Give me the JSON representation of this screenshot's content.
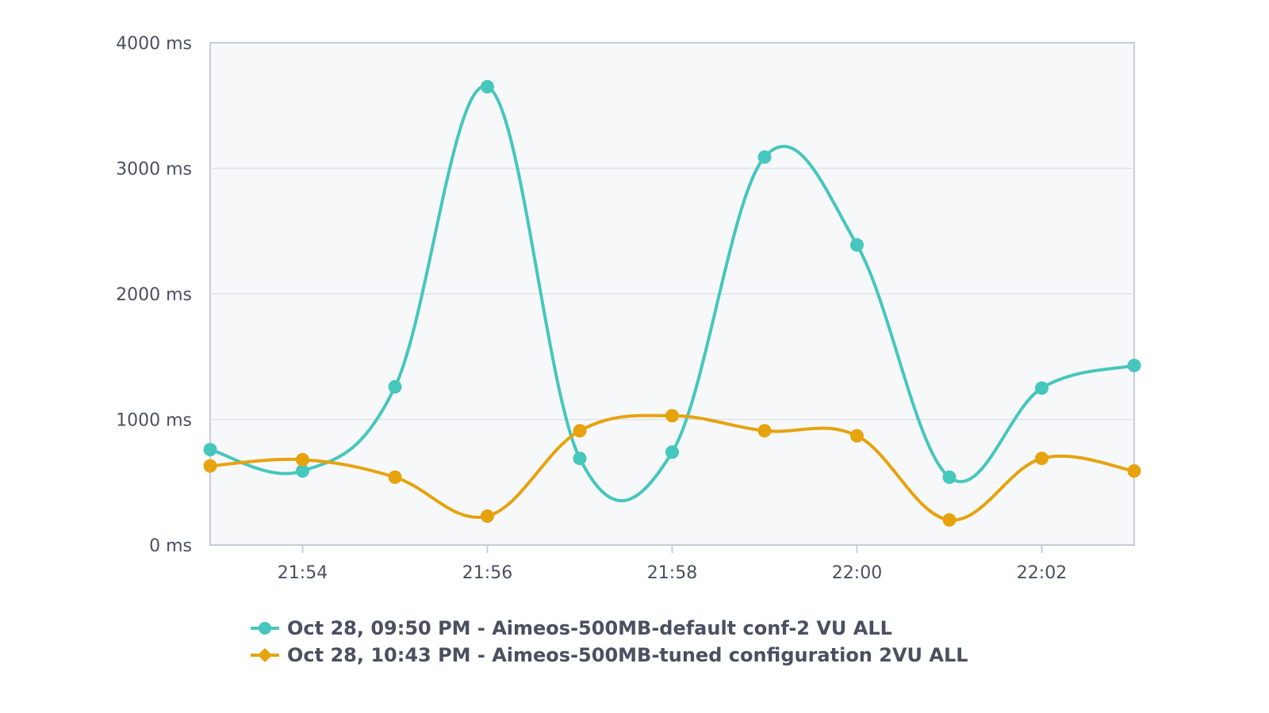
{
  "chart_data": {
    "type": "line",
    "title": "",
    "xlabel": "",
    "ylabel": "",
    "x": [
      "21:53",
      "21:54",
      "21:55",
      "21:56",
      "21:57",
      "21:58",
      "21:59",
      "22:00",
      "22:01",
      "22:02",
      "22:03"
    ],
    "x_tick_labels": [
      "21:54",
      "21:56",
      "21:58",
      "22:00",
      "22:02"
    ],
    "y_tick_labels": [
      "0 ms",
      "1000 ms",
      "2000 ms",
      "3000 ms",
      "4000 ms"
    ],
    "ylim": [
      0,
      4000
    ],
    "y_unit": "ms",
    "grid": true,
    "legend_position": "bottom",
    "series": [
      {
        "name": "Oct 28, 09:50 PM - Aimeos-500MB-default conf-2 VU ALL",
        "color": "#45c7bd",
        "marker": "circle",
        "values": [
          760,
          590,
          1260,
          3650,
          690,
          740,
          3090,
          2390,
          540,
          1250,
          1430
        ]
      },
      {
        "name": "Oct 28, 10:43 PM - Aimeos-500MB-tuned configuration 2VU ALL",
        "color": "#e6a30e",
        "marker": "diamond",
        "values": [
          630,
          680,
          540,
          230,
          910,
          1030,
          910,
          870,
          200,
          690,
          590
        ]
      }
    ],
    "plot_background": "#f7f8fa",
    "grid_color": "#dfe2e8",
    "axis_color": "#c8ccd3"
  }
}
